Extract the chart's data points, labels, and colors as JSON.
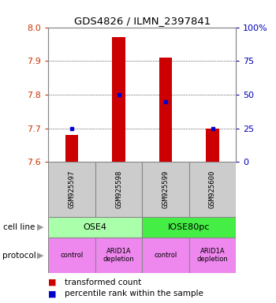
{
  "title": "GDS4826 / ILMN_2397841",
  "samples": [
    "GSM925597",
    "GSM925598",
    "GSM925599",
    "GSM925600"
  ],
  "transformed_counts": [
    7.68,
    7.97,
    7.91,
    7.7
  ],
  "percentile_ranks": [
    25,
    50,
    45,
    25
  ],
  "ylim_left": [
    7.6,
    8.0
  ],
  "ylim_right": [
    0,
    100
  ],
  "yticks_left": [
    7.6,
    7.7,
    7.8,
    7.9,
    8.0
  ],
  "yticks_right": [
    0,
    25,
    50,
    75,
    100
  ],
  "ytick_labels_right": [
    "0",
    "25",
    "50",
    "75",
    "100%"
  ],
  "bar_color": "#cc0000",
  "marker_color": "#0000cc",
  "bar_width": 0.28,
  "cell_line_labels": [
    "OSE4",
    "IOSE80pc"
  ],
  "cell_line_spans": [
    [
      0,
      2
    ],
    [
      2,
      4
    ]
  ],
  "cell_line_colors": [
    "#aaffaa",
    "#44ee44"
  ],
  "protocols": [
    "control",
    "ARID1A\ndepletion",
    "control",
    "ARID1A\ndepletion"
  ],
  "protocol_color": "#ee88ee",
  "sample_box_color": "#cccccc",
  "legend_items": [
    "transformed count",
    "percentile rank within the sample"
  ],
  "legend_colors": [
    "#cc0000",
    "#0000cc"
  ],
  "left_label_color": "#cc3300",
  "right_label_color": "#0000bb"
}
